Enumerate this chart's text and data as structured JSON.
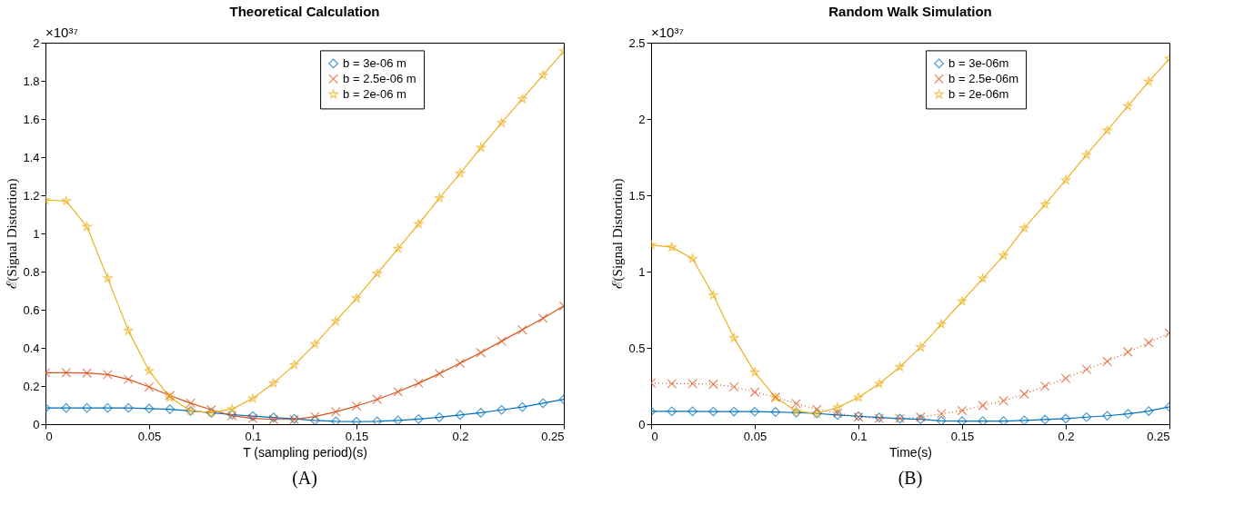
{
  "chart_data": [
    {
      "type": "line",
      "title": "Theoretical Calculation",
      "xlabel": "T (sampling period)(s)",
      "ylabel": "ℰ(Signal Distortion)",
      "x": [
        0,
        0.01,
        0.02,
        0.03,
        0.04,
        0.05,
        0.06,
        0.07,
        0.08,
        0.09,
        0.1,
        0.11,
        0.12,
        0.13,
        0.14,
        0.15,
        0.16,
        0.17,
        0.18,
        0.19,
        0.2,
        0.21,
        0.22,
        0.23,
        0.24,
        0.25
      ],
      "xlim": [
        0,
        0.25
      ],
      "xticks": [
        0,
        0.05,
        0.1,
        0.15,
        0.2,
        0.25
      ],
      "ylim": [
        0,
        2
      ],
      "yticks": [
        0,
        0.2,
        0.4,
        0.6,
        0.8,
        1,
        1.2,
        1.4,
        1.6,
        1.8,
        2
      ],
      "grid": false,
      "legend": "top right",
      "series": [
        {
          "name": "b = 3e-06 m",
          "color": "#0072bd",
          "marker": "diamond",
          "line_style": "solid",
          "values": [
            0.085,
            0.085,
            0.085,
            0.085,
            0.085,
            0.082,
            0.078,
            0.07,
            0.06,
            0.05,
            0.042,
            0.035,
            0.028,
            0.02,
            0.015,
            0.013,
            0.015,
            0.02,
            0.027,
            0.036,
            0.048,
            0.06,
            0.075,
            0.09,
            0.11,
            0.13
          ]
        },
        {
          "name": "b = 2.5e-06 m",
          "color": "#d95319",
          "marker": "cross",
          "line_style": "solid",
          "values": [
            0.27,
            0.27,
            0.268,
            0.26,
            0.235,
            0.195,
            0.15,
            0.11,
            0.075,
            0.045,
            0.03,
            0.025,
            0.025,
            0.04,
            0.065,
            0.095,
            0.13,
            0.17,
            0.215,
            0.265,
            0.32,
            0.375,
            0.435,
            0.495,
            0.555,
            0.62
          ]
        },
        {
          "name": "b = 2e-06 m",
          "color": "#edb120",
          "marker": "star",
          "line_style": "solid",
          "values": [
            1.175,
            1.17,
            1.035,
            0.765,
            0.49,
            0.28,
            0.14,
            0.07,
            0.06,
            0.08,
            0.135,
            0.215,
            0.31,
            0.42,
            0.54,
            0.66,
            0.79,
            0.92,
            1.05,
            1.185,
            1.315,
            1.45,
            1.58,
            1.705,
            1.83,
            1.955
          ]
        }
      ],
      "annotations": [
        "×10³⁷",
        "(A)"
      ]
    },
    {
      "type": "line",
      "title": "Random Walk Simulation",
      "xlabel": "Time(s)",
      "ylabel": "ℰ(Signal Distortion)",
      "x": [
        0,
        0.01,
        0.02,
        0.03,
        0.04,
        0.05,
        0.06,
        0.07,
        0.08,
        0.09,
        0.1,
        0.11,
        0.12,
        0.13,
        0.14,
        0.15,
        0.16,
        0.17,
        0.18,
        0.19,
        0.2,
        0.21,
        0.22,
        0.23,
        0.24,
        0.25
      ],
      "xlim": [
        0,
        0.25
      ],
      "xticks": [
        0,
        0.05,
        0.1,
        0.15,
        0.2,
        0.25
      ],
      "ylim": [
        0,
        2.5
      ],
      "yticks": [
        0,
        0.5,
        1,
        1.5,
        2,
        2.5
      ],
      "grid": false,
      "legend": "top right",
      "series": [
        {
          "name": "b = 3e-06m",
          "color": "#0072bd",
          "marker": "diamond",
          "line_style": "solid",
          "values": [
            0.084,
            0.084,
            0.084,
            0.083,
            0.083,
            0.082,
            0.08,
            0.076,
            0.07,
            0.06,
            0.052,
            0.044,
            0.036,
            0.032,
            0.022,
            0.02,
            0.02,
            0.02,
            0.025,
            0.03,
            0.036,
            0.046,
            0.055,
            0.068,
            0.086,
            0.114
          ]
        },
        {
          "name": "b = 2.5e-06m",
          "color": "#d95319",
          "marker": "cross",
          "line_style": "dotted",
          "values": [
            0.27,
            0.266,
            0.266,
            0.262,
            0.245,
            0.21,
            0.177,
            0.135,
            0.097,
            0.072,
            0.046,
            0.038,
            0.038,
            0.046,
            0.068,
            0.089,
            0.122,
            0.154,
            0.198,
            0.249,
            0.3,
            0.359,
            0.411,
            0.473,
            0.534,
            0.597
          ]
        },
        {
          "name": "b = 2e-06m",
          "color": "#edb120",
          "marker": "star",
          "line_style": "solid",
          "values": [
            1.175,
            1.16,
            1.085,
            0.845,
            0.565,
            0.34,
            0.175,
            0.085,
            0.07,
            0.11,
            0.175,
            0.265,
            0.375,
            0.505,
            0.655,
            0.805,
            0.955,
            1.105,
            1.285,
            1.44,
            1.6,
            1.765,
            1.925,
            2.085,
            2.245,
            2.395
          ]
        }
      ],
      "annotations": [
        "×10³⁷",
        "(B)"
      ]
    }
  ]
}
